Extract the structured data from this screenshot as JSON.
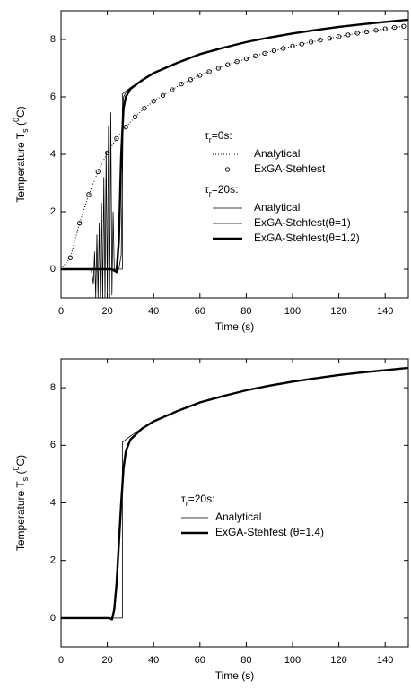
{
  "chart_data": [
    {
      "type": "line",
      "xlabel": "Time (s)",
      "ylabel": [
        "Temperature T",
        "s",
        " (",
        "0",
        "C)"
      ],
      "xlim": [
        0,
        150
      ],
      "xticks": [
        0,
        20,
        40,
        60,
        80,
        100,
        120,
        140
      ],
      "ylim": [
        -1,
        9
      ],
      "yticks": [
        0,
        2,
        4,
        6,
        8
      ],
      "legend": "center right",
      "groups": [
        {
          "title": [
            "τ",
            "r",
            "=0s:"
          ],
          "series": [
            {
              "name": "Analytical",
              "color": "#000000",
              "style": "dotted",
              "x": [
                0,
                4,
                8,
                12,
                16,
                20,
                24,
                28,
                32,
                36,
                40,
                44,
                48,
                52,
                56,
                60,
                64,
                68,
                72,
                76,
                80,
                84,
                88,
                92,
                96,
                100,
                104,
                108,
                112,
                116,
                120,
                124,
                128,
                132,
                136,
                140,
                144,
                148
              ],
              "values": [
                0,
                0.4,
                1.6,
                2.6,
                3.4,
                4.05,
                4.55,
                4.95,
                5.3,
                5.6,
                5.85,
                6.05,
                6.25,
                6.45,
                6.6,
                6.75,
                6.88,
                7.0,
                7.12,
                7.23,
                7.33,
                7.43,
                7.52,
                7.61,
                7.69,
                7.77,
                7.84,
                7.91,
                7.98,
                8.04,
                8.1,
                8.16,
                8.22,
                8.27,
                8.32,
                8.37,
                8.42,
                8.46
              ]
            },
            {
              "name": "ExGA-Stehfest",
              "color": "#000000",
              "style": "open-circle",
              "x": [
                4,
                8,
                12,
                16,
                20,
                24,
                28,
                32,
                36,
                40,
                44,
                48,
                52,
                56,
                60,
                64,
                68,
                72,
                76,
                80,
                84,
                88,
                92,
                96,
                100,
                104,
                108,
                112,
                116,
                120,
                124,
                128,
                132,
                136,
                140,
                144,
                148
              ],
              "values": [
                0.4,
                1.6,
                2.6,
                3.4,
                4.05,
                4.55,
                4.95,
                5.3,
                5.6,
                5.85,
                6.05,
                6.25,
                6.45,
                6.6,
                6.75,
                6.88,
                7.0,
                7.12,
                7.23,
                7.33,
                7.43,
                7.52,
                7.61,
                7.69,
                7.77,
                7.84,
                7.91,
                7.98,
                8.04,
                8.1,
                8.16,
                8.22,
                8.27,
                8.32,
                8.37,
                8.42,
                8.46
              ]
            }
          ]
        },
        {
          "title": [
            "τ",
            "r",
            "=20s:"
          ],
          "series": [
            {
              "name": "Analytical",
              "color": "#000000",
              "style": "thin",
              "x": [
                0,
                26.5,
                26.5,
                28,
                30,
                35,
                40,
                50,
                60,
                70,
                80,
                90,
                100,
                110,
                120,
                130,
                140,
                150
              ],
              "values": [
                0,
                0,
                6.1,
                6.2,
                6.32,
                6.6,
                6.85,
                7.2,
                7.5,
                7.72,
                7.92,
                8.08,
                8.22,
                8.34,
                8.45,
                8.54,
                8.62,
                8.7
              ]
            },
            {
              "name": "ExGA-Stehfest(θ=1)",
              "color": "#000000",
              "style": "thin",
              "x": [
                0,
                13,
                14,
                14.5,
                15,
                15.5,
                16,
                16.5,
                17,
                17.5,
                18,
                18.5,
                19,
                19.5,
                20,
                20.5,
                21,
                21.5,
                22,
                22.5,
                23,
                25,
                26,
                27,
                28,
                30,
                35,
                40,
                50,
                60,
                70,
                80,
                90,
                100,
                110,
                120,
                130,
                140,
                150
              ],
              "values": [
                0,
                0,
                -0.5,
                0.6,
                -1,
                1.2,
                -1,
                1.6,
                -1,
                2.3,
                -1,
                3.2,
                -1,
                4.1,
                -1,
                5.0,
                -1,
                5.45,
                -0.9,
                2,
                0,
                0,
                0.5,
                6.0,
                6.15,
                6.32,
                6.6,
                6.85,
                7.2,
                7.5,
                7.72,
                7.92,
                8.08,
                8.22,
                8.34,
                8.45,
                8.54,
                8.62,
                8.7
              ]
            },
            {
              "name": "ExGA-Stehfest(θ=1.2)",
              "color": "#000000",
              "style": "thick",
              "x": [
                0,
                22,
                23,
                24,
                25,
                26,
                27,
                28,
                30,
                35,
                40,
                50,
                60,
                70,
                80,
                90,
                100,
                110,
                120,
                130,
                140,
                150
              ],
              "values": [
                0,
                0,
                -0.05,
                -0.1,
                1,
                4,
                5.6,
                6.0,
                6.28,
                6.58,
                6.83,
                7.18,
                7.49,
                7.71,
                7.91,
                8.07,
                8.21,
                8.33,
                8.44,
                8.53,
                8.61,
                8.69
              ]
            }
          ]
        }
      ]
    },
    {
      "type": "line",
      "xlabel": "Time (s)",
      "ylabel": [
        "Temperature T",
        "s",
        " (",
        "0",
        "C)"
      ],
      "xlim": [
        0,
        150
      ],
      "xticks": [
        0,
        20,
        40,
        60,
        80,
        100,
        120,
        140
      ],
      "ylim": [
        -1,
        9
      ],
      "yticks": [
        0,
        2,
        4,
        6,
        8
      ],
      "legend": "center",
      "groups": [
        {
          "title": [
            "τ",
            "r",
            "=20s:"
          ],
          "series": [
            {
              "name": "Analytical",
              "color": "#000000",
              "style": "thin",
              "x": [
                0,
                26.5,
                26.5,
                28,
                30,
                35,
                40,
                50,
                60,
                70,
                80,
                90,
                100,
                110,
                120,
                130,
                140,
                150
              ],
              "values": [
                0,
                0,
                6.1,
                6.2,
                6.32,
                6.6,
                6.85,
                7.2,
                7.5,
                7.72,
                7.92,
                8.08,
                8.22,
                8.34,
                8.45,
                8.54,
                8.62,
                8.7
              ]
            },
            {
              "name": "ExGA-Stehfest (θ=1.4)",
              "color": "#000000",
              "style": "thick",
              "x": [
                0,
                21,
                22,
                23,
                24,
                25,
                26,
                27,
                28,
                30,
                35,
                40,
                50,
                60,
                70,
                80,
                90,
                100,
                110,
                120,
                130,
                140,
                150
              ],
              "values": [
                0,
                0,
                -0.05,
                0.3,
                1.2,
                2.6,
                4,
                5.2,
                5.8,
                6.2,
                6.58,
                6.83,
                7.18,
                7.49,
                7.71,
                7.91,
                8.07,
                8.21,
                8.33,
                8.44,
                8.53,
                8.61,
                8.69
              ]
            }
          ]
        }
      ]
    }
  ]
}
